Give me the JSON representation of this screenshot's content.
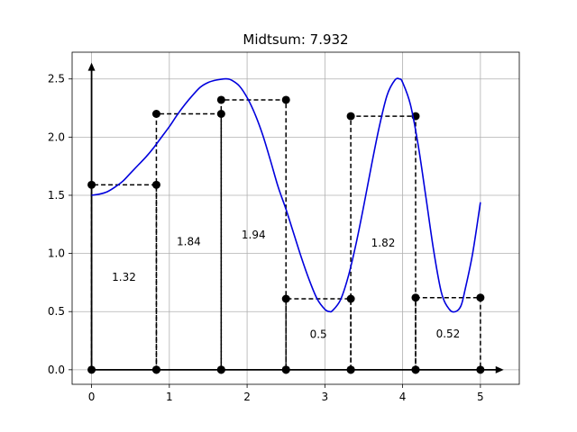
{
  "chart_data": {
    "type": "line",
    "title": "Midtsum: 7.932",
    "xlabel": "",
    "ylabel": "",
    "xlim": [
      -0.25,
      5.5
    ],
    "ylim": [
      -0.125,
      2.73
    ],
    "grid": true,
    "x_ticks": [
      0,
      1,
      2,
      3,
      4,
      5
    ],
    "x_tick_labels": [
      "0",
      "1",
      "2",
      "3",
      "4",
      "5"
    ],
    "y_ticks": [
      0.0,
      0.5,
      1.0,
      1.5,
      2.0,
      2.5
    ],
    "y_tick_labels": [
      "0.0",
      "0.5",
      "1.0",
      "1.5",
      "2.0",
      "2.5"
    ],
    "curve": {
      "color": "#0000dd",
      "x": [
        0.0,
        0.1,
        0.2,
        0.3,
        0.4,
        0.5,
        0.6,
        0.7,
        0.8,
        0.9,
        1.0,
        1.1,
        1.2,
        1.3,
        1.4,
        1.5,
        1.6,
        1.7,
        1.75,
        1.8,
        1.9,
        2.0,
        2.1,
        2.2,
        2.3,
        2.4,
        2.5,
        2.6,
        2.7,
        2.8,
        2.9,
        3.0,
        3.06,
        3.1,
        3.2,
        3.3,
        3.4,
        3.5,
        3.6,
        3.7,
        3.8,
        3.9,
        3.96,
        4.0,
        4.1,
        4.2,
        4.3,
        4.4,
        4.5,
        4.6,
        4.68,
        4.75,
        4.8,
        4.9,
        5.0
      ],
      "y": [
        1.5,
        1.51,
        1.53,
        1.57,
        1.62,
        1.69,
        1.76,
        1.83,
        1.91,
        2.0,
        2.09,
        2.19,
        2.28,
        2.36,
        2.43,
        2.47,
        2.49,
        2.5,
        2.5,
        2.49,
        2.44,
        2.34,
        2.2,
        2.02,
        1.8,
        1.57,
        1.38,
        1.17,
        0.96,
        0.77,
        0.61,
        0.52,
        0.5,
        0.51,
        0.6,
        0.8,
        1.08,
        1.41,
        1.76,
        2.09,
        2.36,
        2.49,
        2.5,
        2.47,
        2.28,
        1.93,
        1.48,
        1.02,
        0.66,
        0.52,
        0.5,
        0.55,
        0.68,
        1.0,
        1.44
      ]
    },
    "rectangles": [
      {
        "x0": 0.0,
        "x1": 0.8333,
        "height": 1.59,
        "label": "1.32"
      },
      {
        "x0": 0.8333,
        "x1": 1.6667,
        "height": 2.2,
        "label": "1.84"
      },
      {
        "x0": 1.6667,
        "x1": 2.5,
        "height": 2.32,
        "label": "1.94"
      },
      {
        "x0": 2.5,
        "x1": 3.3333,
        "height": 0.61,
        "label": "0.5"
      },
      {
        "x0": 3.3333,
        "x1": 4.1667,
        "height": 2.18,
        "label": "1.82"
      },
      {
        "x0": 4.1667,
        "x1": 5.0,
        "height": 0.62,
        "label": "0.52"
      }
    ]
  }
}
